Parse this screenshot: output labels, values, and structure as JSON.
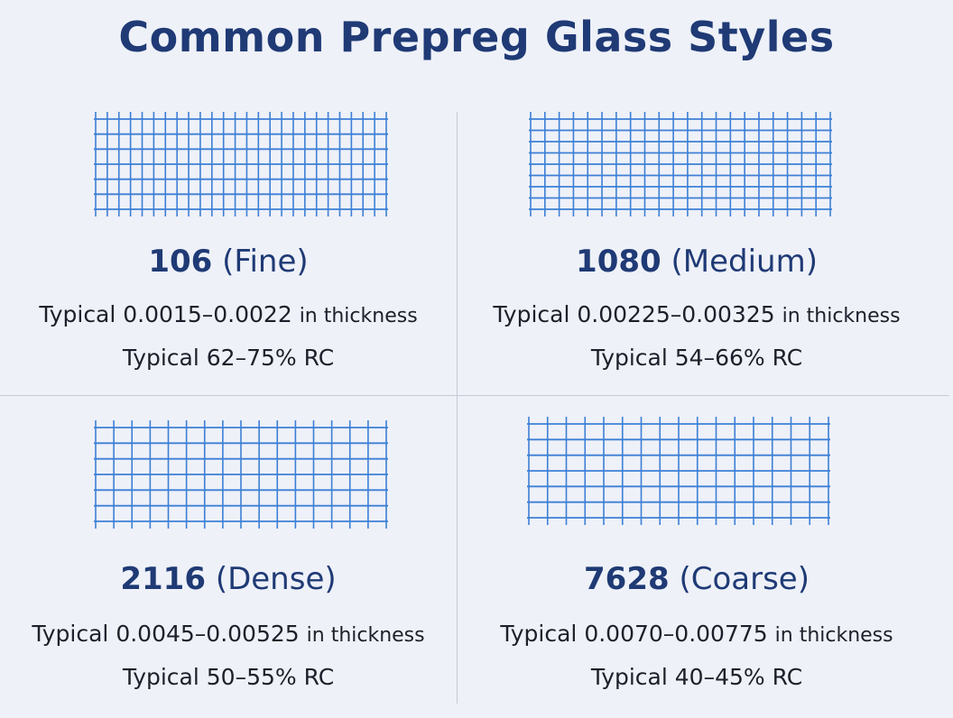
{
  "title": "Common Prepreg Glass Styles",
  "colors": {
    "title": "#1f3a75",
    "mesh": "#3d7fd6",
    "background": "#eef1f8",
    "divider": "#c5cad6"
  },
  "styles": [
    {
      "code": "106",
      "descriptor": "(Fine)",
      "thickness_prefix": "Typical 0.0015–0.0022",
      "thickness_unit": "in thickness",
      "rc": "Typical 62–75% RC"
    },
    {
      "code": "1080",
      "descriptor": "(Medium)",
      "thickness_prefix": "Typical 0.00225–0.00325",
      "thickness_unit": "in thickness",
      "rc": "Typical 54–66% RC"
    },
    {
      "code": "2116",
      "descriptor": "(Dense)",
      "thickness_prefix": "Typical 0.0045–0.00525",
      "thickness_unit": "in thickness",
      "rc": "Typical 50–55% RC"
    },
    {
      "code": "7628",
      "descriptor": "(Coarse)",
      "thickness_prefix": "Typical 0.0070–0.00775",
      "thickness_unit": "in thickness",
      "rc": "Typical 40–45% RC"
    }
  ]
}
